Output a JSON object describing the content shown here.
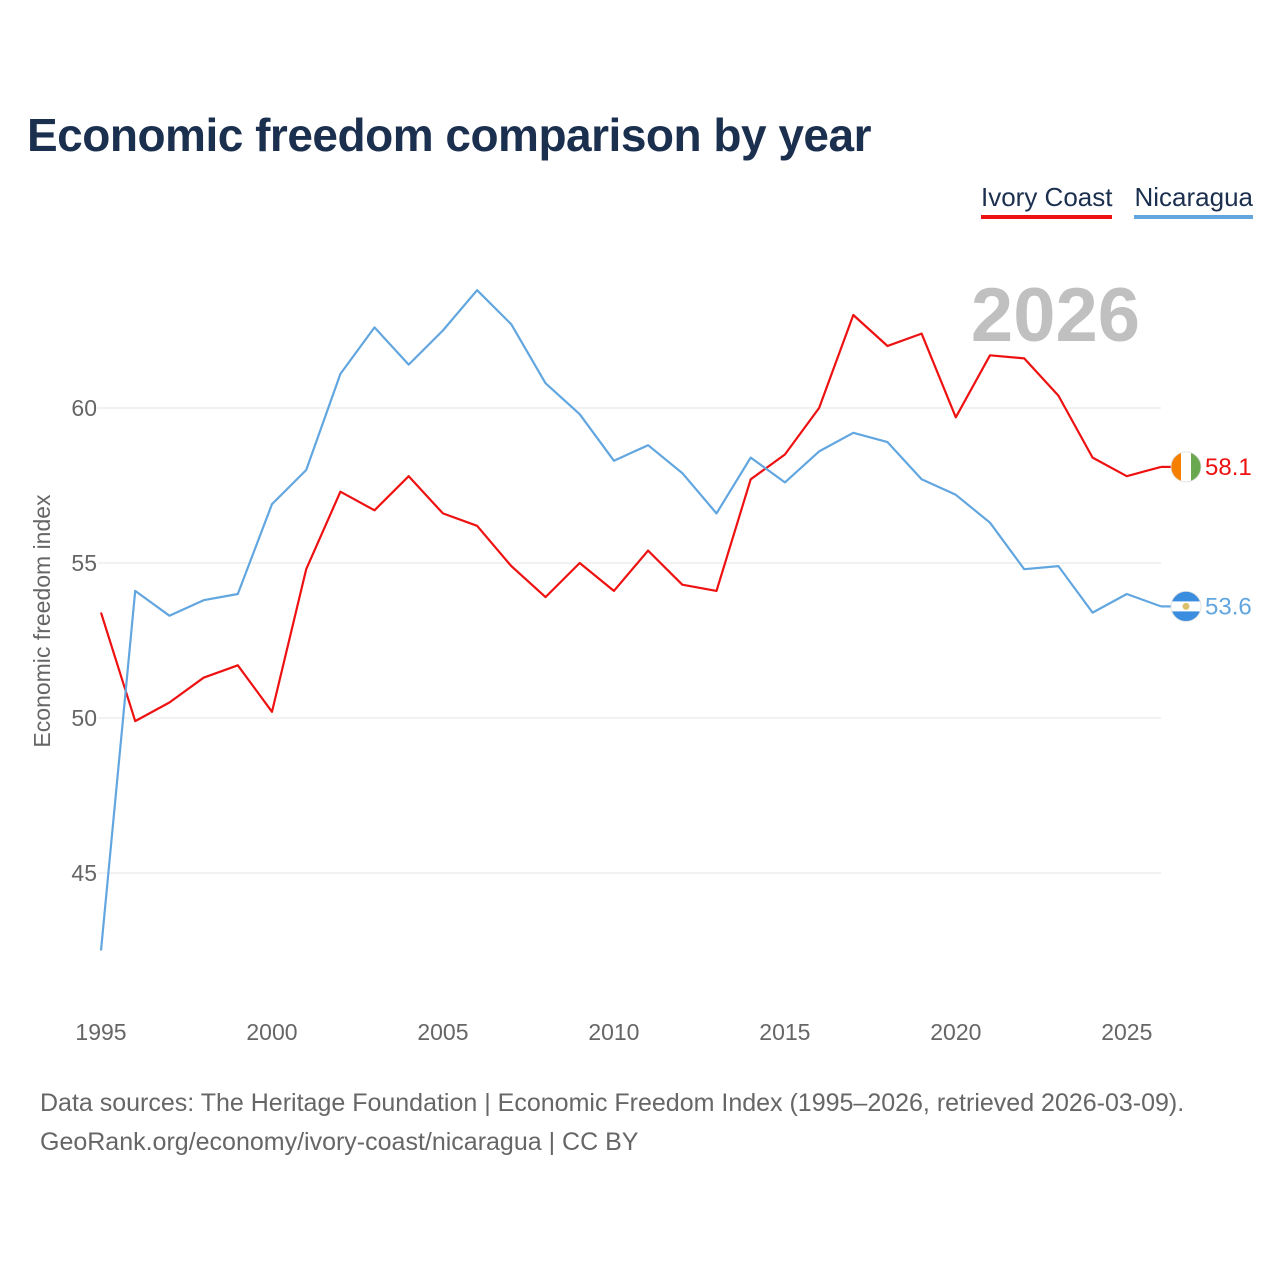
{
  "chart_data": {
    "type": "line",
    "title": "Economic freedom comparison by year",
    "xlabel": "",
    "ylabel": "Economic freedom index",
    "year_label": "2026",
    "x": [
      1995,
      1996,
      1997,
      1998,
      1999,
      2000,
      2001,
      2002,
      2003,
      2004,
      2005,
      2006,
      2007,
      2008,
      2009,
      2010,
      2011,
      2012,
      2013,
      2014,
      2015,
      2016,
      2017,
      2018,
      2019,
      2020,
      2021,
      2022,
      2023,
      2024,
      2025,
      2026
    ],
    "xlim": [
      1995,
      2026
    ],
    "ylim": [
      42,
      65
    ],
    "x_ticks": [
      1995,
      2000,
      2005,
      2010,
      2015,
      2020,
      2025
    ],
    "y_ticks": [
      45,
      50,
      55,
      60
    ],
    "grid": true,
    "legend_position": "top-right",
    "series": [
      {
        "name": "Ivory Coast",
        "color": "#ee1111",
        "end_label": "58.1",
        "flag_colors": [
          "#f77f00",
          "#ffffff",
          "#6aa84f"
        ],
        "values": [
          53.4,
          49.9,
          50.5,
          51.3,
          51.7,
          50.2,
          54.8,
          57.3,
          56.7,
          57.8,
          56.6,
          56.2,
          54.9,
          53.9,
          55.0,
          54.1,
          55.4,
          54.3,
          54.1,
          57.7,
          58.5,
          60.0,
          63.0,
          62.0,
          62.4,
          59.7,
          61.7,
          61.6,
          60.4,
          58.4,
          57.8,
          58.1
        ]
      },
      {
        "name": "Nicaragua",
        "color": "#62a6e0",
        "end_label": "53.6",
        "flag_colors": [
          "#3b8de0",
          "#ffffff",
          "#3b8de0"
        ],
        "values": [
          42.5,
          54.1,
          53.3,
          53.8,
          54.0,
          56.9,
          58.0,
          61.1,
          62.6,
          61.4,
          62.5,
          63.8,
          62.7,
          60.8,
          59.8,
          58.3,
          58.8,
          57.9,
          56.6,
          58.4,
          57.6,
          58.6,
          59.2,
          58.9,
          57.7,
          57.2,
          56.3,
          54.8,
          54.9,
          53.4,
          54.0,
          53.6
        ]
      }
    ]
  },
  "footer": {
    "line1": "Data sources: The Heritage Foundation | Economic Freedom Index (1995–2026, retrieved 2026-03-09).",
    "line2": "GeoRank.org/economy/ivory-coast/nicaragua | CC BY"
  }
}
